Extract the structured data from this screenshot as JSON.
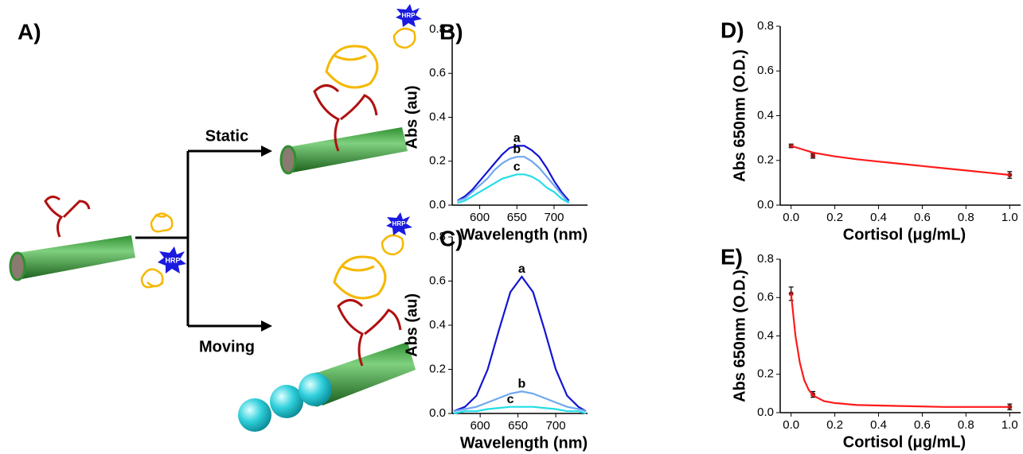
{
  "diagram": {
    "label": "A)",
    "arrows": [
      "Static",
      "Moving"
    ],
    "hrp": [
      "HRP",
      "HRP",
      "HRP"
    ]
  },
  "chart_data": [
    {
      "type": "line",
      "title": "B)",
      "xlabel": "Wavelength (nm)",
      "ylabel": "Abs (au)",
      "x": [
        570,
        580,
        590,
        600,
        610,
        620,
        630,
        640,
        650,
        660,
        670,
        680,
        690,
        700,
        710,
        720
      ],
      "series": [
        {
          "name": "a",
          "color": "#1414d2",
          "values": [
            0.02,
            0.04,
            0.07,
            0.11,
            0.15,
            0.19,
            0.23,
            0.26,
            0.27,
            0.27,
            0.25,
            0.22,
            0.17,
            0.11,
            0.06,
            0.02
          ]
        },
        {
          "name": "b",
          "color": "#6fa8f0",
          "values": [
            0.02,
            0.03,
            0.06,
            0.09,
            0.12,
            0.16,
            0.19,
            0.21,
            0.22,
            0.22,
            0.2,
            0.17,
            0.13,
            0.09,
            0.05,
            0.01
          ]
        },
        {
          "name": "c",
          "color": "#22dde8",
          "values": [
            0.01,
            0.02,
            0.04,
            0.06,
            0.08,
            0.1,
            0.12,
            0.13,
            0.14,
            0.14,
            0.13,
            0.11,
            0.08,
            0.06,
            0.03,
            0.01
          ]
        }
      ],
      "xlim": [
        563,
        745
      ],
      "xticks": [
        600,
        650,
        700
      ],
      "ylim": [
        0,
        0.8
      ],
      "yticks": [
        {
          "value": 0,
          "label": "0.0"
        },
        0.2,
        0.4,
        0.6,
        0.8
      ]
    },
    {
      "type": "line",
      "title": "C)",
      "xlabel": "Wavelength (nm)",
      "ylabel": "Abs (au)",
      "x": [
        565,
        580,
        595,
        610,
        625,
        640,
        655,
        670,
        685,
        700,
        715,
        730,
        740
      ],
      "series": [
        {
          "name": "a",
          "color": "#1414d2",
          "values": [
            0.01,
            0.03,
            0.08,
            0.2,
            0.38,
            0.55,
            0.62,
            0.55,
            0.38,
            0.2,
            0.08,
            0.03,
            0.01
          ]
        },
        {
          "name": "b",
          "color": "#6fa8f0",
          "values": [
            0.01,
            0.02,
            0.03,
            0.05,
            0.07,
            0.09,
            0.1,
            0.09,
            0.07,
            0.05,
            0.03,
            0.02,
            0.01
          ]
        },
        {
          "name": "c",
          "color": "#22dde8",
          "values": [
            0,
            0.01,
            0.01,
            0.02,
            0.025,
            0.03,
            0.03,
            0.03,
            0.025,
            0.02,
            0.01,
            0.01,
            0
          ]
        }
      ],
      "xlim": [
        563,
        742
      ],
      "xticks": [
        600,
        650,
        700
      ],
      "ylim": [
        0,
        0.8
      ],
      "yticks": [
        {
          "value": 0,
          "label": "0.0"
        },
        0.2,
        0.4,
        0.6,
        0.8
      ]
    },
    {
      "type": "scatter",
      "title": "D)",
      "xlabel": "Cortisol (μg/mL)",
      "ylabel": "Abs 650nm (O.D.)",
      "series": [
        {
          "color": "#8b1a1a",
          "x": [
            0,
            0.1,
            1
          ],
          "values": [
            0.265,
            0.22,
            0.135
          ],
          "errors": [
            0.008,
            0.01,
            0.015
          ]
        },
        {
          "color": "#ff1a1a",
          "style": "line",
          "x": [
            0,
            0.1,
            0.2,
            0.3,
            0.4,
            0.5,
            0.6,
            0.7,
            0.8,
            0.9,
            1
          ],
          "values": [
            0.265,
            0.235,
            0.218,
            0.205,
            0.195,
            0.185,
            0.175,
            0.165,
            0.155,
            0.145,
            0.135
          ]
        }
      ],
      "xlim": [
        -0.05,
        1.05
      ],
      "xticks": [
        {
          "value": 0,
          "label": "0.0"
        },
        0.2,
        0.4,
        0.6,
        0.8,
        {
          "value": 1,
          "label": "1.0"
        }
      ],
      "ylim": [
        0,
        0.8
      ],
      "yticks": [
        {
          "value": 0,
          "label": "0.0"
        },
        0.2,
        0.4,
        0.6,
        0.8
      ]
    },
    {
      "type": "scatter",
      "title": "E)",
      "xlabel": "Cortisol (μg/mL)",
      "ylabel": "Abs 650nm (O.D.)",
      "series": [
        {
          "color": "#8b1a1a",
          "x": [
            0,
            0.1,
            1
          ],
          "values": [
            0.62,
            0.095,
            0.03
          ],
          "errors": [
            0.035,
            0.015,
            0.015
          ]
        },
        {
          "color": "#ff1a1a",
          "style": "line",
          "x": [
            0,
            0.02,
            0.04,
            0.06,
            0.08,
            0.1,
            0.15,
            0.2,
            0.3,
            0.5,
            0.7,
            1
          ],
          "values": [
            0.62,
            0.4,
            0.26,
            0.17,
            0.12,
            0.09,
            0.06,
            0.05,
            0.04,
            0.035,
            0.03,
            0.03
          ]
        }
      ],
      "xlim": [
        -0.05,
        1.05
      ],
      "xticks": [
        {
          "value": 0,
          "label": "0.0"
        },
        0.2,
        0.4,
        0.6,
        0.8,
        {
          "value": 1,
          "label": "1.0"
        }
      ],
      "ylim": [
        0,
        0.8
      ],
      "yticks": [
        {
          "value": 0,
          "label": "0.0"
        },
        0.2,
        0.4,
        0.6,
        0.8
      ]
    }
  ]
}
